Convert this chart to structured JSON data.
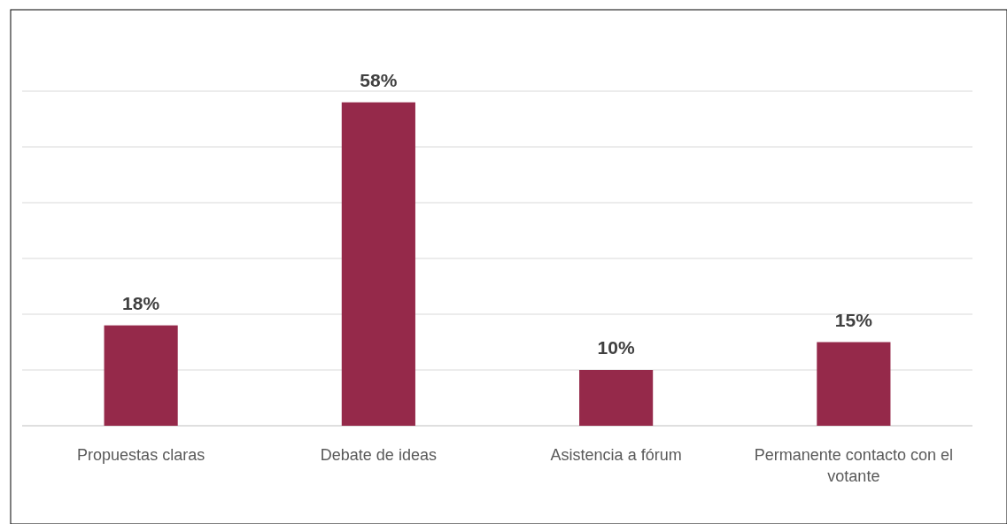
{
  "chart_data": {
    "type": "bar",
    "categories": [
      "Propuestas claras",
      "Debate de ideas",
      "Asistencia a fórum",
      "Permanente contacto con el votante"
    ],
    "values": [
      18,
      58,
      10,
      15
    ],
    "color": "#95294a",
    "ylim": [
      0,
      60
    ],
    "yticks": [
      {
        "value": 0,
        "label": null
      },
      {
        "value": 10,
        "label": null
      },
      {
        "value": 20,
        "label": null
      },
      {
        "value": 30,
        "label": null
      },
      {
        "value": 40,
        "label": null
      },
      {
        "value": 50,
        "label": null
      },
      {
        "value": 60,
        "label": null
      }
    ],
    "value_labels": [
      "18%",
      "58%",
      "10%",
      "15%"
    ],
    "tick_labels": "x",
    "grid": "y"
  }
}
